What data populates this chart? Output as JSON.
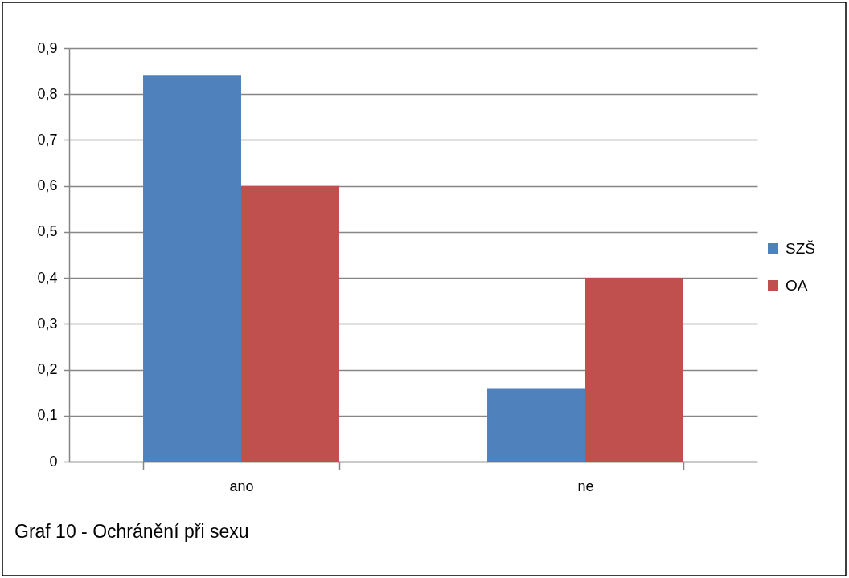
{
  "chart_data": {
    "type": "bar",
    "categories": [
      "ano",
      "ne"
    ],
    "series": [
      {
        "name": "SZŠ",
        "color": "#4f81bd",
        "values": [
          0.84,
          0.16
        ]
      },
      {
        "name": "OA",
        "color": "#c0504d",
        "values": [
          0.6,
          0.4
        ]
      }
    ],
    "ylim": [
      0,
      0.9
    ],
    "yticks": [
      0,
      {
        "value": 0.1,
        "label": "0,1"
      },
      {
        "value": 0.2,
        "label": "0,2"
      },
      {
        "value": 0.3,
        "label": "0,3"
      },
      {
        "value": 0.4,
        "label": "0,4"
      },
      {
        "value": 0.5,
        "label": "0,5"
      },
      {
        "value": 0.6,
        "label": "0,6"
      },
      {
        "value": 0.7,
        "label": "0,7"
      },
      {
        "value": 0.8,
        "label": "0,8"
      },
      {
        "value": 0.9,
        "label": "0,9"
      }
    ],
    "grid": "y",
    "legend": "right",
    "annotations": [
      "Graf 10 - Ochránění při sexu"
    ]
  }
}
